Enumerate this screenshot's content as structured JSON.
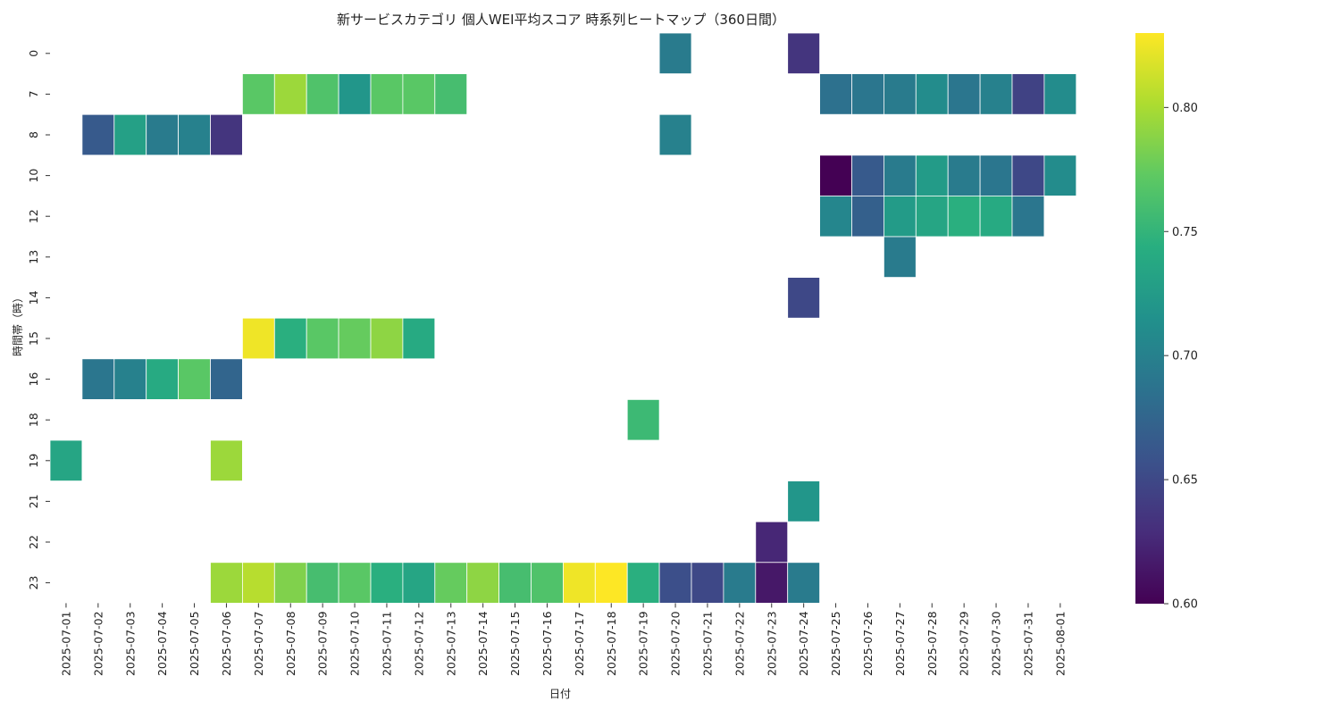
{
  "chart_data": {
    "type": "heatmap",
    "title": "新サービスカテゴリ 個人WEI平均スコア 時系列ヒートマップ（360日間）",
    "xlabel": "日付",
    "ylabel": "時間帯（時）",
    "colormap": "viridis",
    "vmin": 0.6,
    "vmax": 0.83,
    "colorbar_ticks": [
      "0.60",
      "0.65",
      "0.70",
      "0.75",
      "0.80"
    ],
    "colorbar_tick_values": [
      0.6,
      0.65,
      0.7,
      0.75,
      0.8
    ],
    "x_categories": [
      "2025-07-01",
      "2025-07-02",
      "2025-07-03",
      "2025-07-04",
      "2025-07-05",
      "2025-07-06",
      "2025-07-07",
      "2025-07-08",
      "2025-07-09",
      "2025-07-10",
      "2025-07-11",
      "2025-07-12",
      "2025-07-13",
      "2025-07-14",
      "2025-07-15",
      "2025-07-16",
      "2025-07-17",
      "2025-07-18",
      "2025-07-19",
      "2025-07-20",
      "2025-07-21",
      "2025-07-22",
      "2025-07-23",
      "2025-07-24",
      "2025-07-25",
      "2025-07-26",
      "2025-07-27",
      "2025-07-28",
      "2025-07-29",
      "2025-07-30",
      "2025-07-31",
      "2025-08-01"
    ],
    "y_categories": [
      "0",
      "7",
      "8",
      "10",
      "12",
      "13",
      "14",
      "15",
      "16",
      "18",
      "19",
      "21",
      "22",
      "23"
    ],
    "values": [
      [
        null,
        null,
        null,
        null,
        null,
        null,
        null,
        null,
        null,
        null,
        null,
        null,
        null,
        null,
        null,
        null,
        null,
        null,
        null,
        0.695,
        null,
        null,
        null,
        0.635,
        null,
        null,
        null,
        null,
        null,
        null,
        null,
        null
      ],
      [
        null,
        null,
        null,
        null,
        null,
        null,
        0.77,
        0.795,
        0.765,
        0.72,
        0.77,
        0.77,
        0.76,
        null,
        null,
        null,
        null,
        null,
        null,
        null,
        null,
        null,
        null,
        null,
        0.685,
        0.69,
        0.695,
        0.71,
        0.69,
        0.7,
        0.645,
        0.71
      ],
      [
        null,
        0.665,
        0.73,
        0.695,
        0.7,
        0.635,
        null,
        null,
        null,
        null,
        null,
        null,
        null,
        null,
        null,
        null,
        null,
        null,
        null,
        0.7,
        null,
        null,
        null,
        null,
        null,
        null,
        null,
        null,
        null,
        null,
        null,
        null
      ],
      [
        null,
        null,
        null,
        null,
        null,
        null,
        null,
        null,
        null,
        null,
        null,
        null,
        null,
        null,
        null,
        null,
        null,
        null,
        null,
        null,
        null,
        null,
        null,
        null,
        0.6,
        0.665,
        0.695,
        0.725,
        0.695,
        0.69,
        0.65,
        0.71
      ],
      [
        null,
        null,
        null,
        null,
        null,
        null,
        null,
        null,
        null,
        null,
        null,
        null,
        null,
        null,
        null,
        null,
        null,
        null,
        null,
        null,
        null,
        null,
        null,
        null,
        0.705,
        0.67,
        0.725,
        0.735,
        0.745,
        0.74,
        0.69,
        null
      ],
      [
        null,
        null,
        null,
        null,
        null,
        null,
        null,
        null,
        null,
        null,
        null,
        null,
        null,
        null,
        null,
        null,
        null,
        null,
        null,
        null,
        null,
        null,
        null,
        null,
        null,
        null,
        0.695,
        null,
        null,
        null,
        null,
        null
      ],
      [
        null,
        null,
        null,
        null,
        null,
        null,
        null,
        null,
        null,
        null,
        null,
        null,
        null,
        null,
        null,
        null,
        null,
        null,
        null,
        null,
        null,
        null,
        null,
        0.65,
        null,
        null,
        null,
        null,
        null,
        null,
        null,
        null
      ],
      [
        null,
        null,
        null,
        null,
        null,
        null,
        0.825,
        0.745,
        0.77,
        0.775,
        0.79,
        0.74,
        null,
        null,
        null,
        null,
        null,
        null,
        null,
        null,
        null,
        null,
        null,
        null,
        null,
        null,
        null,
        null,
        null,
        null,
        null,
        null
      ],
      [
        null,
        0.69,
        0.7,
        0.74,
        0.77,
        0.675,
        null,
        null,
        null,
        null,
        null,
        null,
        null,
        null,
        null,
        null,
        null,
        null,
        null,
        null,
        null,
        null,
        null,
        null,
        null,
        null,
        null,
        null,
        null,
        null,
        null,
        null
      ],
      [
        null,
        null,
        null,
        null,
        null,
        null,
        null,
        null,
        null,
        null,
        null,
        null,
        null,
        null,
        null,
        null,
        null,
        null,
        0.755,
        null,
        null,
        null,
        null,
        null,
        null,
        null,
        null,
        null,
        null,
        null,
        null,
        null
      ],
      [
        0.735,
        null,
        null,
        null,
        null,
        0.795,
        null,
        null,
        null,
        null,
        null,
        null,
        null,
        null,
        null,
        null,
        null,
        null,
        null,
        null,
        null,
        null,
        null,
        null,
        null,
        null,
        null,
        null,
        null,
        null,
        null,
        null
      ],
      [
        null,
        null,
        null,
        null,
        null,
        null,
        null,
        null,
        null,
        null,
        null,
        null,
        null,
        null,
        null,
        null,
        null,
        null,
        null,
        null,
        null,
        null,
        null,
        0.72,
        null,
        null,
        null,
        null,
        null,
        null,
        null,
        null
      ],
      [
        null,
        null,
        null,
        null,
        null,
        null,
        null,
        null,
        null,
        null,
        null,
        null,
        null,
        null,
        null,
        null,
        null,
        null,
        null,
        null,
        null,
        null,
        0.625,
        null,
        null,
        null,
        null,
        null,
        null,
        null,
        null,
        null
      ],
      [
        null,
        null,
        null,
        null,
        null,
        0.795,
        0.805,
        0.785,
        0.76,
        0.77,
        0.745,
        0.735,
        0.775,
        0.79,
        0.76,
        0.765,
        0.825,
        0.83,
        0.745,
        0.655,
        0.65,
        0.695,
        0.615,
        0.695,
        null,
        null,
        null,
        null,
        null,
        null,
        null,
        null
      ]
    ]
  }
}
